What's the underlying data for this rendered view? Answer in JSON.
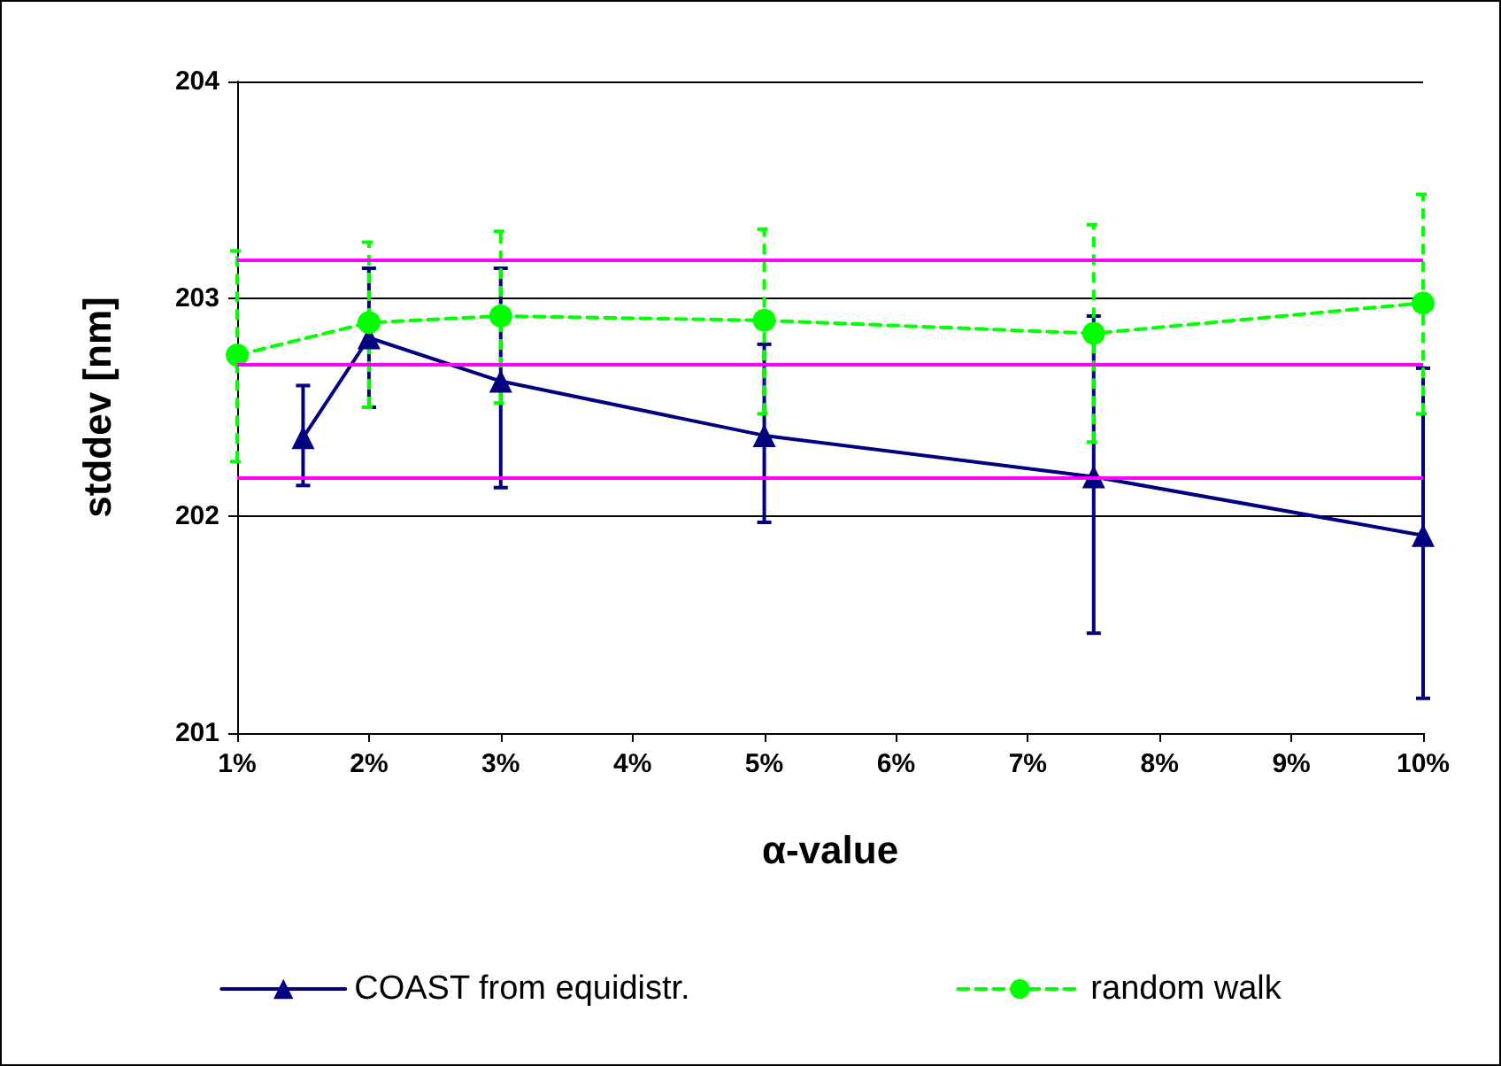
{
  "chart_data": {
    "type": "line",
    "xlabel": "α-value",
    "ylabel": "stddev [nm]",
    "xlim": [
      1,
      10
    ],
    "xticks": [
      {
        "value": 1,
        "label": "1%"
      },
      {
        "value": 2,
        "label": "2%"
      },
      {
        "value": 3,
        "label": "3%"
      },
      {
        "value": 4,
        "label": "4%"
      },
      {
        "value": 5,
        "label": "5%"
      },
      {
        "value": 6,
        "label": "6%"
      },
      {
        "value": 7,
        "label": "7%"
      },
      {
        "value": 8,
        "label": "8%"
      },
      {
        "value": 9,
        "label": "9%"
      },
      {
        "value": 10,
        "label": "10%"
      }
    ],
    "ylim": [
      201,
      204
    ],
    "yticks": [
      201,
      202,
      203,
      204
    ],
    "grid": "y",
    "legend": "bottom",
    "series": [
      {
        "name": "COAST from equidistr.",
        "color": "#000080",
        "marker": "triangle",
        "line_style": "solid",
        "x": [
          1.5,
          2,
          3,
          5,
          7.5,
          10
        ],
        "values": [
          202.36,
          202.82,
          202.62,
          202.37,
          202.18,
          201.91
        ],
        "errors": [
          [
            202.14,
            202.6
          ],
          [
            202.5,
            203.14
          ],
          [
            202.13,
            203.14
          ],
          [
            201.97,
            202.79
          ],
          [
            201.46,
            202.92
          ],
          [
            201.16,
            202.68
          ]
        ]
      },
      {
        "name": "random walk",
        "color": "#00ff00",
        "marker": "circle",
        "line_style": "dashed",
        "x": [
          1,
          2,
          3,
          5,
          7.5,
          10
        ],
        "values": [
          202.74,
          202.89,
          202.92,
          202.9,
          202.84,
          202.98
        ],
        "errors": [
          [
            202.25,
            203.22
          ],
          [
            202.5,
            203.26
          ],
          [
            202.52,
            203.31
          ],
          [
            202.47,
            203.32
          ],
          [
            202.34,
            203.34
          ],
          [
            202.47,
            203.48
          ]
        ]
      }
    ],
    "ref_lines": [
      {
        "axis": "y",
        "value": 202.7,
        "color": "#ff00ff",
        "line_style": "solid"
      },
      {
        "axis": "y",
        "value": 203.18,
        "color": "#ff00ff",
        "line_style": "solid"
      },
      {
        "axis": "y",
        "value": 202.18,
        "color": "#ff00ff",
        "line_style": "solid"
      }
    ]
  }
}
